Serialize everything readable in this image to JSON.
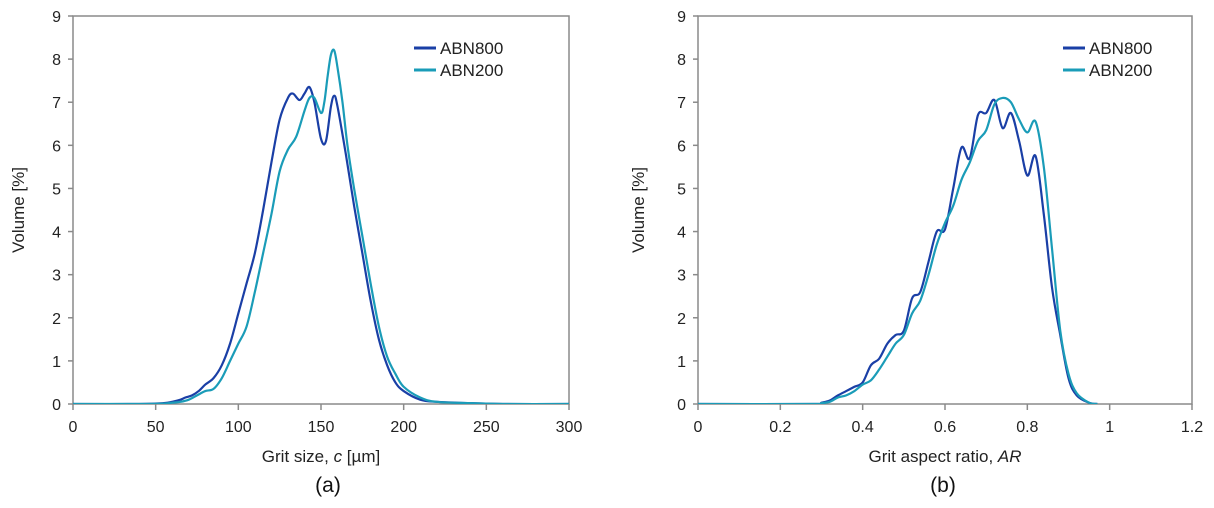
{
  "chart_data": [
    {
      "type": "line",
      "panel_label": "(a)",
      "xlabel_text": "Grit size, ",
      "xlabel_italic": "c",
      "xlabel_unit": " [µm]",
      "ylabel": "Volume [%]",
      "xlim": [
        0,
        300
      ],
      "ylim": [
        0,
        9
      ],
      "xticks": [
        0,
        50,
        100,
        150,
        200,
        250,
        300
      ],
      "yticks": [
        0,
        1,
        2,
        3,
        4,
        5,
        6,
        7,
        8,
        9
      ],
      "grid": false,
      "legend_position": "top-right",
      "series": [
        {
          "name": "ABN800",
          "color": "#1a3fa6",
          "x": [
            0,
            40,
            55,
            60,
            65,
            68,
            72,
            76,
            80,
            85,
            90,
            95,
            100,
            105,
            110,
            115,
            120,
            125,
            130,
            133,
            137,
            140,
            143,
            146,
            150,
            153,
            156,
            158,
            160,
            165,
            170,
            175,
            180,
            185,
            190,
            195,
            200,
            210,
            220,
            240,
            260,
            300
          ],
          "y": [
            0,
            0,
            0.02,
            0.05,
            0.1,
            0.15,
            0.2,
            0.3,
            0.45,
            0.6,
            0.9,
            1.4,
            2.1,
            2.8,
            3.5,
            4.5,
            5.6,
            6.6,
            7.1,
            7.2,
            7.05,
            7.2,
            7.35,
            7.0,
            6.15,
            6.1,
            6.9,
            7.15,
            6.9,
            5.8,
            4.6,
            3.5,
            2.4,
            1.5,
            0.9,
            0.5,
            0.3,
            0.1,
            0.05,
            0.02,
            0,
            0
          ]
        },
        {
          "name": "ABN200",
          "color": "#1a9cb8",
          "x": [
            0,
            40,
            55,
            60,
            65,
            70,
            75,
            80,
            85,
            90,
            95,
            100,
            105,
            110,
            115,
            120,
            125,
            130,
            135,
            140,
            143,
            146,
            150,
            152,
            154,
            156,
            158,
            160,
            163,
            166,
            170,
            175,
            180,
            185,
            190,
            195,
            200,
            210,
            220,
            240,
            260,
            300
          ],
          "y": [
            0,
            0,
            0.01,
            0.03,
            0.05,
            0.1,
            0.2,
            0.3,
            0.35,
            0.6,
            1.0,
            1.4,
            1.8,
            2.6,
            3.5,
            4.4,
            5.4,
            5.9,
            6.2,
            6.8,
            7.1,
            7.1,
            6.75,
            7.0,
            7.6,
            8.1,
            8.2,
            7.8,
            7.0,
            6.0,
            5.0,
            3.9,
            2.8,
            1.8,
            1.1,
            0.7,
            0.4,
            0.15,
            0.05,
            0.02,
            0,
            0
          ]
        }
      ]
    },
    {
      "type": "line",
      "panel_label": "(b)",
      "xlabel_text": "Grit aspect ratio, ",
      "xlabel_italic": "AR",
      "xlabel_unit": "",
      "ylabel": "Volume [%]",
      "xlim": [
        0,
        1.2
      ],
      "ylim": [
        0,
        9
      ],
      "xticks": [
        0,
        0.2,
        0.4,
        0.6,
        0.8,
        1,
        1.2
      ],
      "yticks": [
        0,
        1,
        2,
        3,
        4,
        5,
        6,
        7,
        8,
        9
      ],
      "grid": false,
      "legend_position": "top-right",
      "series": [
        {
          "name": "ABN800",
          "color": "#1a3fa6",
          "x": [
            0,
            0.28,
            0.3,
            0.32,
            0.34,
            0.36,
            0.38,
            0.4,
            0.42,
            0.44,
            0.46,
            0.48,
            0.5,
            0.52,
            0.54,
            0.56,
            0.58,
            0.6,
            0.62,
            0.64,
            0.66,
            0.68,
            0.7,
            0.72,
            0.74,
            0.76,
            0.78,
            0.8,
            0.82,
            0.84,
            0.86,
            0.88,
            0.9,
            0.92,
            0.95,
            0.97
          ],
          "y": [
            0,
            0,
            0.03,
            0.08,
            0.2,
            0.3,
            0.4,
            0.5,
            0.9,
            1.05,
            1.4,
            1.6,
            1.7,
            2.45,
            2.6,
            3.3,
            4.0,
            4.05,
            5.0,
            5.95,
            5.7,
            6.7,
            6.75,
            7.05,
            6.4,
            6.75,
            6.1,
            5.3,
            5.75,
            4.4,
            2.7,
            1.6,
            0.6,
            0.2,
            0.03,
            0
          ]
        },
        {
          "name": "ABN200",
          "color": "#1a9cb8",
          "x": [
            0,
            0.28,
            0.3,
            0.32,
            0.34,
            0.36,
            0.38,
            0.4,
            0.42,
            0.44,
            0.46,
            0.48,
            0.5,
            0.52,
            0.54,
            0.56,
            0.58,
            0.6,
            0.62,
            0.64,
            0.66,
            0.68,
            0.7,
            0.72,
            0.74,
            0.76,
            0.78,
            0.8,
            0.82,
            0.84,
            0.86,
            0.88,
            0.9,
            0.92,
            0.95,
            0.97
          ],
          "y": [
            0,
            0,
            0.02,
            0.05,
            0.15,
            0.2,
            0.3,
            0.45,
            0.55,
            0.8,
            1.1,
            1.4,
            1.6,
            2.1,
            2.4,
            3.0,
            3.7,
            4.2,
            4.6,
            5.2,
            5.6,
            6.1,
            6.35,
            6.95,
            7.1,
            7.0,
            6.6,
            6.3,
            6.55,
            5.5,
            3.6,
            1.7,
            0.7,
            0.25,
            0.03,
            0
          ]
        }
      ]
    }
  ]
}
